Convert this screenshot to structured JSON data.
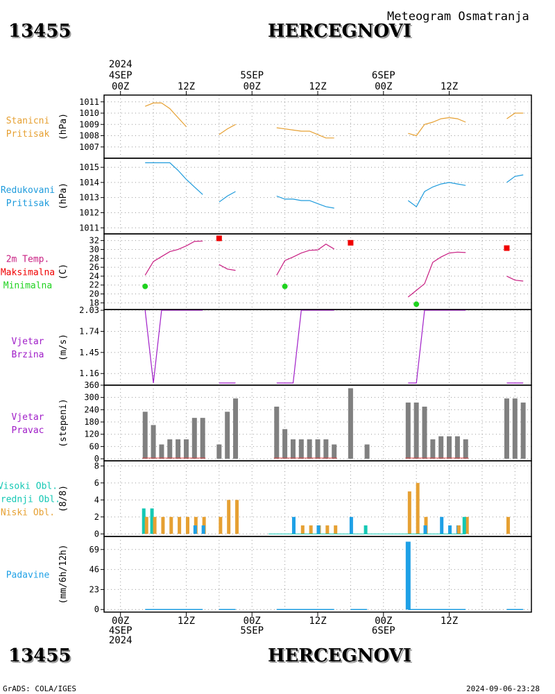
{
  "header": {
    "station_id": "13455",
    "station_name": "HERCEGNOVI",
    "subtitle": "Meteogram Osmatranja"
  },
  "footer": {
    "credit": "GrADS: COLA/IGES",
    "timestamp": "2024-09-06-23:28"
  },
  "time_axis": {
    "year": "2024",
    "hour_labels": [
      "00Z",
      "12Z",
      "00Z",
      "12Z",
      "00Z",
      "12Z"
    ],
    "day_labels": [
      "4SEP",
      "5SEP",
      "6SEP"
    ]
  },
  "colors": {
    "pressure": "#e6a032",
    "reduced": "#1e9bdc",
    "temp": "#c81e82",
    "max": "#f00000",
    "min": "#1ed21e",
    "wind": "#a01ec8",
    "bars": "#808080",
    "high": "#14c8b4",
    "mid": "#1ea0e6",
    "low": "#e6a032",
    "precip": "#1ea0e6"
  },
  "chart_data": [
    {
      "type": "line",
      "panel": "pressure",
      "labels": [
        "Stanicni",
        "Pritisak"
      ],
      "unit": "(hPa)",
      "ylim": [
        1006,
        1011.6
      ],
      "yticks": [
        1007,
        1008,
        1009,
        1010,
        1011
      ],
      "segments": [
        [
          [
            9,
            1010.6
          ],
          [
            12,
            1010.9
          ],
          [
            15,
            1010.9
          ],
          [
            18,
            1010.4
          ],
          [
            21,
            1009.6
          ],
          [
            24,
            1008.8
          ]
        ],
        [
          [
            36,
            1008.1
          ],
          [
            39,
            1008.6
          ],
          [
            42,
            1009.0
          ]
        ],
        [
          [
            57,
            1008.7
          ],
          [
            60,
            1008.6
          ],
          [
            63,
            1008.5
          ],
          [
            66,
            1008.4
          ],
          [
            69,
            1008.4
          ],
          [
            72,
            1008.1
          ],
          [
            75,
            1007.8
          ],
          [
            78,
            1007.8
          ]
        ],
        [
          [
            105,
            1008.2
          ],
          [
            108,
            1008.0
          ],
          [
            111,
            1009.0
          ],
          [
            114,
            1009.2
          ],
          [
            117,
            1009.5
          ],
          [
            120,
            1009.6
          ],
          [
            123,
            1009.5
          ],
          [
            126,
            1009.2
          ]
        ],
        [
          [
            141,
            1009.5
          ],
          [
            144,
            1010.0
          ],
          [
            147,
            1010.0
          ]
        ]
      ]
    },
    {
      "type": "line",
      "panel": "reduced",
      "labels": [
        "Redukovani",
        "Pritisak"
      ],
      "unit": "(hPa)",
      "ylim": [
        1010.6,
        1015.6
      ],
      "yticks": [
        1011,
        1012,
        1013,
        1014,
        1015
      ],
      "segments": [
        [
          [
            9,
            1015.3
          ],
          [
            15,
            1015.3
          ],
          [
            18,
            1015.3
          ],
          [
            21,
            1014.8
          ],
          [
            24,
            1014.2
          ],
          [
            27,
            1013.7
          ],
          [
            30,
            1013.2
          ]
        ],
        [
          [
            36,
            1012.7
          ],
          [
            39,
            1013.1
          ],
          [
            42,
            1013.4
          ]
        ],
        [
          [
            57,
            1013.1
          ],
          [
            60,
            1012.9
          ],
          [
            63,
            1012.9
          ],
          [
            66,
            1012.8
          ],
          [
            69,
            1012.8
          ],
          [
            72,
            1012.6
          ],
          [
            75,
            1012.4
          ],
          [
            78,
            1012.3
          ]
        ],
        [
          [
            105,
            1012.8
          ],
          [
            108,
            1012.4
          ],
          [
            111,
            1013.4
          ],
          [
            114,
            1013.7
          ],
          [
            117,
            1013.9
          ],
          [
            120,
            1014.0
          ],
          [
            123,
            1013.9
          ],
          [
            126,
            1013.8
          ]
        ],
        [
          [
            141,
            1014.0
          ],
          [
            144,
            1014.4
          ],
          [
            147,
            1014.5
          ]
        ]
      ]
    },
    {
      "type": "line",
      "panel": "temp",
      "labels": [
        "2m Temp.",
        "Maksimalna",
        "Minimalna"
      ],
      "unit": "(C)",
      "ylim": [
        16.5,
        33.5
      ],
      "yticks": [
        18,
        20,
        22,
        24,
        26,
        28,
        30,
        32
      ],
      "segments": [
        [
          [
            9,
            24.2
          ],
          [
            12,
            27.3
          ],
          [
            15,
            28.4
          ],
          [
            18,
            29.5
          ],
          [
            21,
            30.0
          ],
          [
            24,
            30.8
          ],
          [
            27,
            31.8
          ],
          [
            30,
            31.9
          ]
        ],
        [
          [
            36,
            26.6
          ],
          [
            39,
            25.6
          ],
          [
            42,
            25.3
          ]
        ],
        [
          [
            57,
            24.2
          ],
          [
            60,
            27.5
          ],
          [
            63,
            28.3
          ],
          [
            66,
            29.2
          ],
          [
            69,
            29.8
          ],
          [
            72,
            29.9
          ],
          [
            75,
            31.2
          ],
          [
            78,
            30.1
          ]
        ],
        [
          [
            105,
            19.3
          ],
          [
            108,
            20.8
          ],
          [
            111,
            22.3
          ],
          [
            114,
            27.1
          ],
          [
            117,
            28.3
          ],
          [
            120,
            29.2
          ],
          [
            123,
            29.4
          ],
          [
            126,
            29.3
          ]
        ],
        [
          [
            141,
            24.0
          ],
          [
            144,
            23.1
          ],
          [
            147,
            22.9
          ]
        ]
      ],
      "max_points": [
        [
          36,
          32.5
        ],
        [
          84,
          31.5
        ],
        [
          141,
          30.3
        ]
      ],
      "min_points": [
        [
          9,
          21.7
        ],
        [
          60,
          21.7
        ],
        [
          108,
          17.7
        ]
      ]
    },
    {
      "type": "line",
      "panel": "wind_speed",
      "labels": [
        "Vjetar",
        "Brzina"
      ],
      "unit": "(m/s)",
      "ylim": [
        1.0,
        2.04
      ],
      "yticks": [
        1.16,
        1.45,
        1.74,
        2.03
      ],
      "ytick_labels": [
        "1.16",
        "1.45",
        "1.74",
        "2.03"
      ],
      "segments": [
        [
          [
            9,
            2.03
          ],
          [
            12,
            1.03
          ],
          [
            15,
            2.03
          ],
          [
            18,
            2.03
          ],
          [
            21,
            2.03
          ],
          [
            24,
            2.03
          ],
          [
            27,
            2.03
          ],
          [
            30,
            2.03
          ]
        ],
        [
          [
            36,
            1.03
          ],
          [
            39,
            1.03
          ],
          [
            42,
            1.03
          ]
        ],
        [
          [
            57,
            1.03
          ],
          [
            60,
            1.03
          ],
          [
            63,
            1.03
          ],
          [
            66,
            2.03
          ],
          [
            69,
            2.03
          ],
          [
            72,
            2.03
          ],
          [
            75,
            2.03
          ],
          [
            78,
            2.03
          ]
        ],
        [
          [
            105,
            1.03
          ],
          [
            108,
            1.03
          ],
          [
            111,
            2.03
          ],
          [
            114,
            2.03
          ],
          [
            117,
            2.03
          ],
          [
            120,
            2.03
          ],
          [
            123,
            2.03
          ],
          [
            126,
            2.03
          ]
        ],
        [
          [
            141,
            1.03
          ],
          [
            144,
            1.03
          ],
          [
            147,
            1.03
          ]
        ]
      ]
    },
    {
      "type": "bar",
      "panel": "wind_dir",
      "labels": [
        "Vjetar",
        "Pravac"
      ],
      "unit": "(stepeni)",
      "ylim": [
        -10,
        360
      ],
      "yticks": [
        0,
        60,
        120,
        180,
        240,
        300,
        360
      ],
      "bars": [
        [
          9,
          230
        ],
        [
          12,
          165
        ],
        [
          15,
          70
        ],
        [
          18,
          95
        ],
        [
          21,
          95
        ],
        [
          24,
          95
        ],
        [
          27,
          200
        ],
        [
          30,
          200
        ],
        [
          36,
          70
        ],
        [
          39,
          230
        ],
        [
          42,
          295
        ],
        [
          57,
          255
        ],
        [
          60,
          145
        ],
        [
          63,
          95
        ],
        [
          66,
          95
        ],
        [
          69,
          95
        ],
        [
          72,
          95
        ],
        [
          75,
          95
        ],
        [
          78,
          70
        ],
        [
          84,
          345
        ],
        [
          90,
          70
        ],
        [
          105,
          275
        ],
        [
          108,
          275
        ],
        [
          111,
          255
        ],
        [
          114,
          95
        ],
        [
          117,
          110
        ],
        [
          120,
          110
        ],
        [
          123,
          110
        ],
        [
          126,
          95
        ],
        [
          141,
          295
        ],
        [
          144,
          295
        ],
        [
          147,
          275
        ]
      ]
    },
    {
      "type": "bar",
      "panel": "clouds",
      "labels": [
        "Visoki Obl.",
        "Srednji Obl.",
        "Niski Obl."
      ],
      "unit": "(8/8)",
      "ylim": [
        -0.3,
        8.6
      ],
      "yticks": [
        0,
        2,
        4,
        6,
        8
      ],
      "bars": [
        [
          9,
          "high",
          3
        ],
        [
          12,
          "high",
          3
        ],
        [
          9,
          "low",
          2
        ],
        [
          12,
          "low",
          2
        ],
        [
          15,
          "low",
          2
        ],
        [
          18,
          "low",
          2
        ],
        [
          21,
          "low",
          2
        ],
        [
          24,
          "low",
          2
        ],
        [
          27,
          "low",
          2
        ],
        [
          27,
          "mid",
          1
        ],
        [
          30,
          "low",
          2
        ],
        [
          30,
          "mid",
          1
        ],
        [
          36,
          "low",
          2
        ],
        [
          39,
          "low",
          4
        ],
        [
          42,
          "low",
          4
        ],
        [
          63,
          "mid",
          2
        ],
        [
          66,
          "low",
          1
        ],
        [
          69,
          "low",
          1
        ],
        [
          72,
          "low",
          1
        ],
        [
          72,
          "mid",
          1
        ],
        [
          75,
          "low",
          1
        ],
        [
          78,
          "low",
          1
        ],
        [
          84,
          "mid",
          2
        ],
        [
          90,
          "high",
          1
        ],
        [
          105,
          "low",
          5
        ],
        [
          108,
          "low",
          6
        ],
        [
          111,
          "low",
          2
        ],
        [
          111,
          "mid",
          1
        ],
        [
          117,
          "mid",
          2
        ],
        [
          120,
          "mid",
          1
        ],
        [
          123,
          "mid",
          1
        ],
        [
          123,
          "low",
          1
        ],
        [
          126,
          "low",
          2
        ],
        [
          126,
          "high",
          2
        ],
        [
          141,
          "low",
          2
        ]
      ]
    },
    {
      "type": "bar",
      "panel": "precip",
      "labels": [
        "Padavine"
      ],
      "unit": "(mm/6h/12h)",
      "ylim": [
        -3,
        84
      ],
      "yticks": [
        0,
        23,
        46,
        69
      ],
      "bars": [
        [
          105,
          78
        ]
      ]
    }
  ]
}
